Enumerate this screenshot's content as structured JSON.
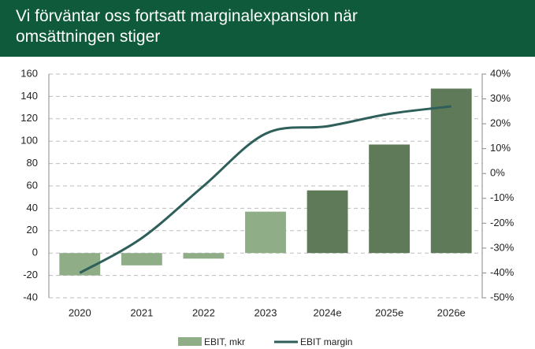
{
  "chart_data": {
    "type": "bar_line",
    "title": "Vi förväntar oss fortsatt marginalexpansion när omsättningen stiger",
    "categories": [
      "2020",
      "2021",
      "2022",
      "2023",
      "2024e",
      "2025e",
      "2026e"
    ],
    "series": [
      {
        "name": "EBIT, mkr",
        "type": "bar",
        "color": "#8fae88",
        "colors": [
          "#8fae88",
          "#8fae88",
          "#8fae88",
          "#8fae88",
          "#5e7a58",
          "#5e7a58",
          "#5e7a58"
        ],
        "values": [
          -20,
          -11,
          -5,
          37,
          56,
          97,
          147
        ]
      },
      {
        "name": "EBIT margin",
        "type": "line",
        "color": "#2f5f5a",
        "axis": "y2",
        "values": [
          -40,
          -26,
          -5,
          16,
          19,
          24,
          27
        ]
      }
    ],
    "ylim": [
      -40,
      160
    ],
    "yticks": [
      -40,
      -20,
      0,
      20,
      40,
      60,
      80,
      100,
      120,
      140,
      160
    ],
    "y2lim": [
      -50,
      40
    ],
    "y2ticks": [
      {
        "value": -50,
        "label": "-50%"
      },
      {
        "value": -40,
        "label": "-40%"
      },
      {
        "value": -30,
        "label": "-30%"
      },
      {
        "value": -20,
        "label": "-20%"
      },
      {
        "value": -10,
        "label": "-10%"
      },
      {
        "value": 0,
        "label": "0%"
      },
      {
        "value": 10,
        "label": "10%"
      },
      {
        "value": 20,
        "label": "20%"
      },
      {
        "value": 30,
        "label": "30%"
      },
      {
        "value": 40,
        "label": "40%"
      }
    ],
    "grid": true,
    "legend": "bottom"
  }
}
